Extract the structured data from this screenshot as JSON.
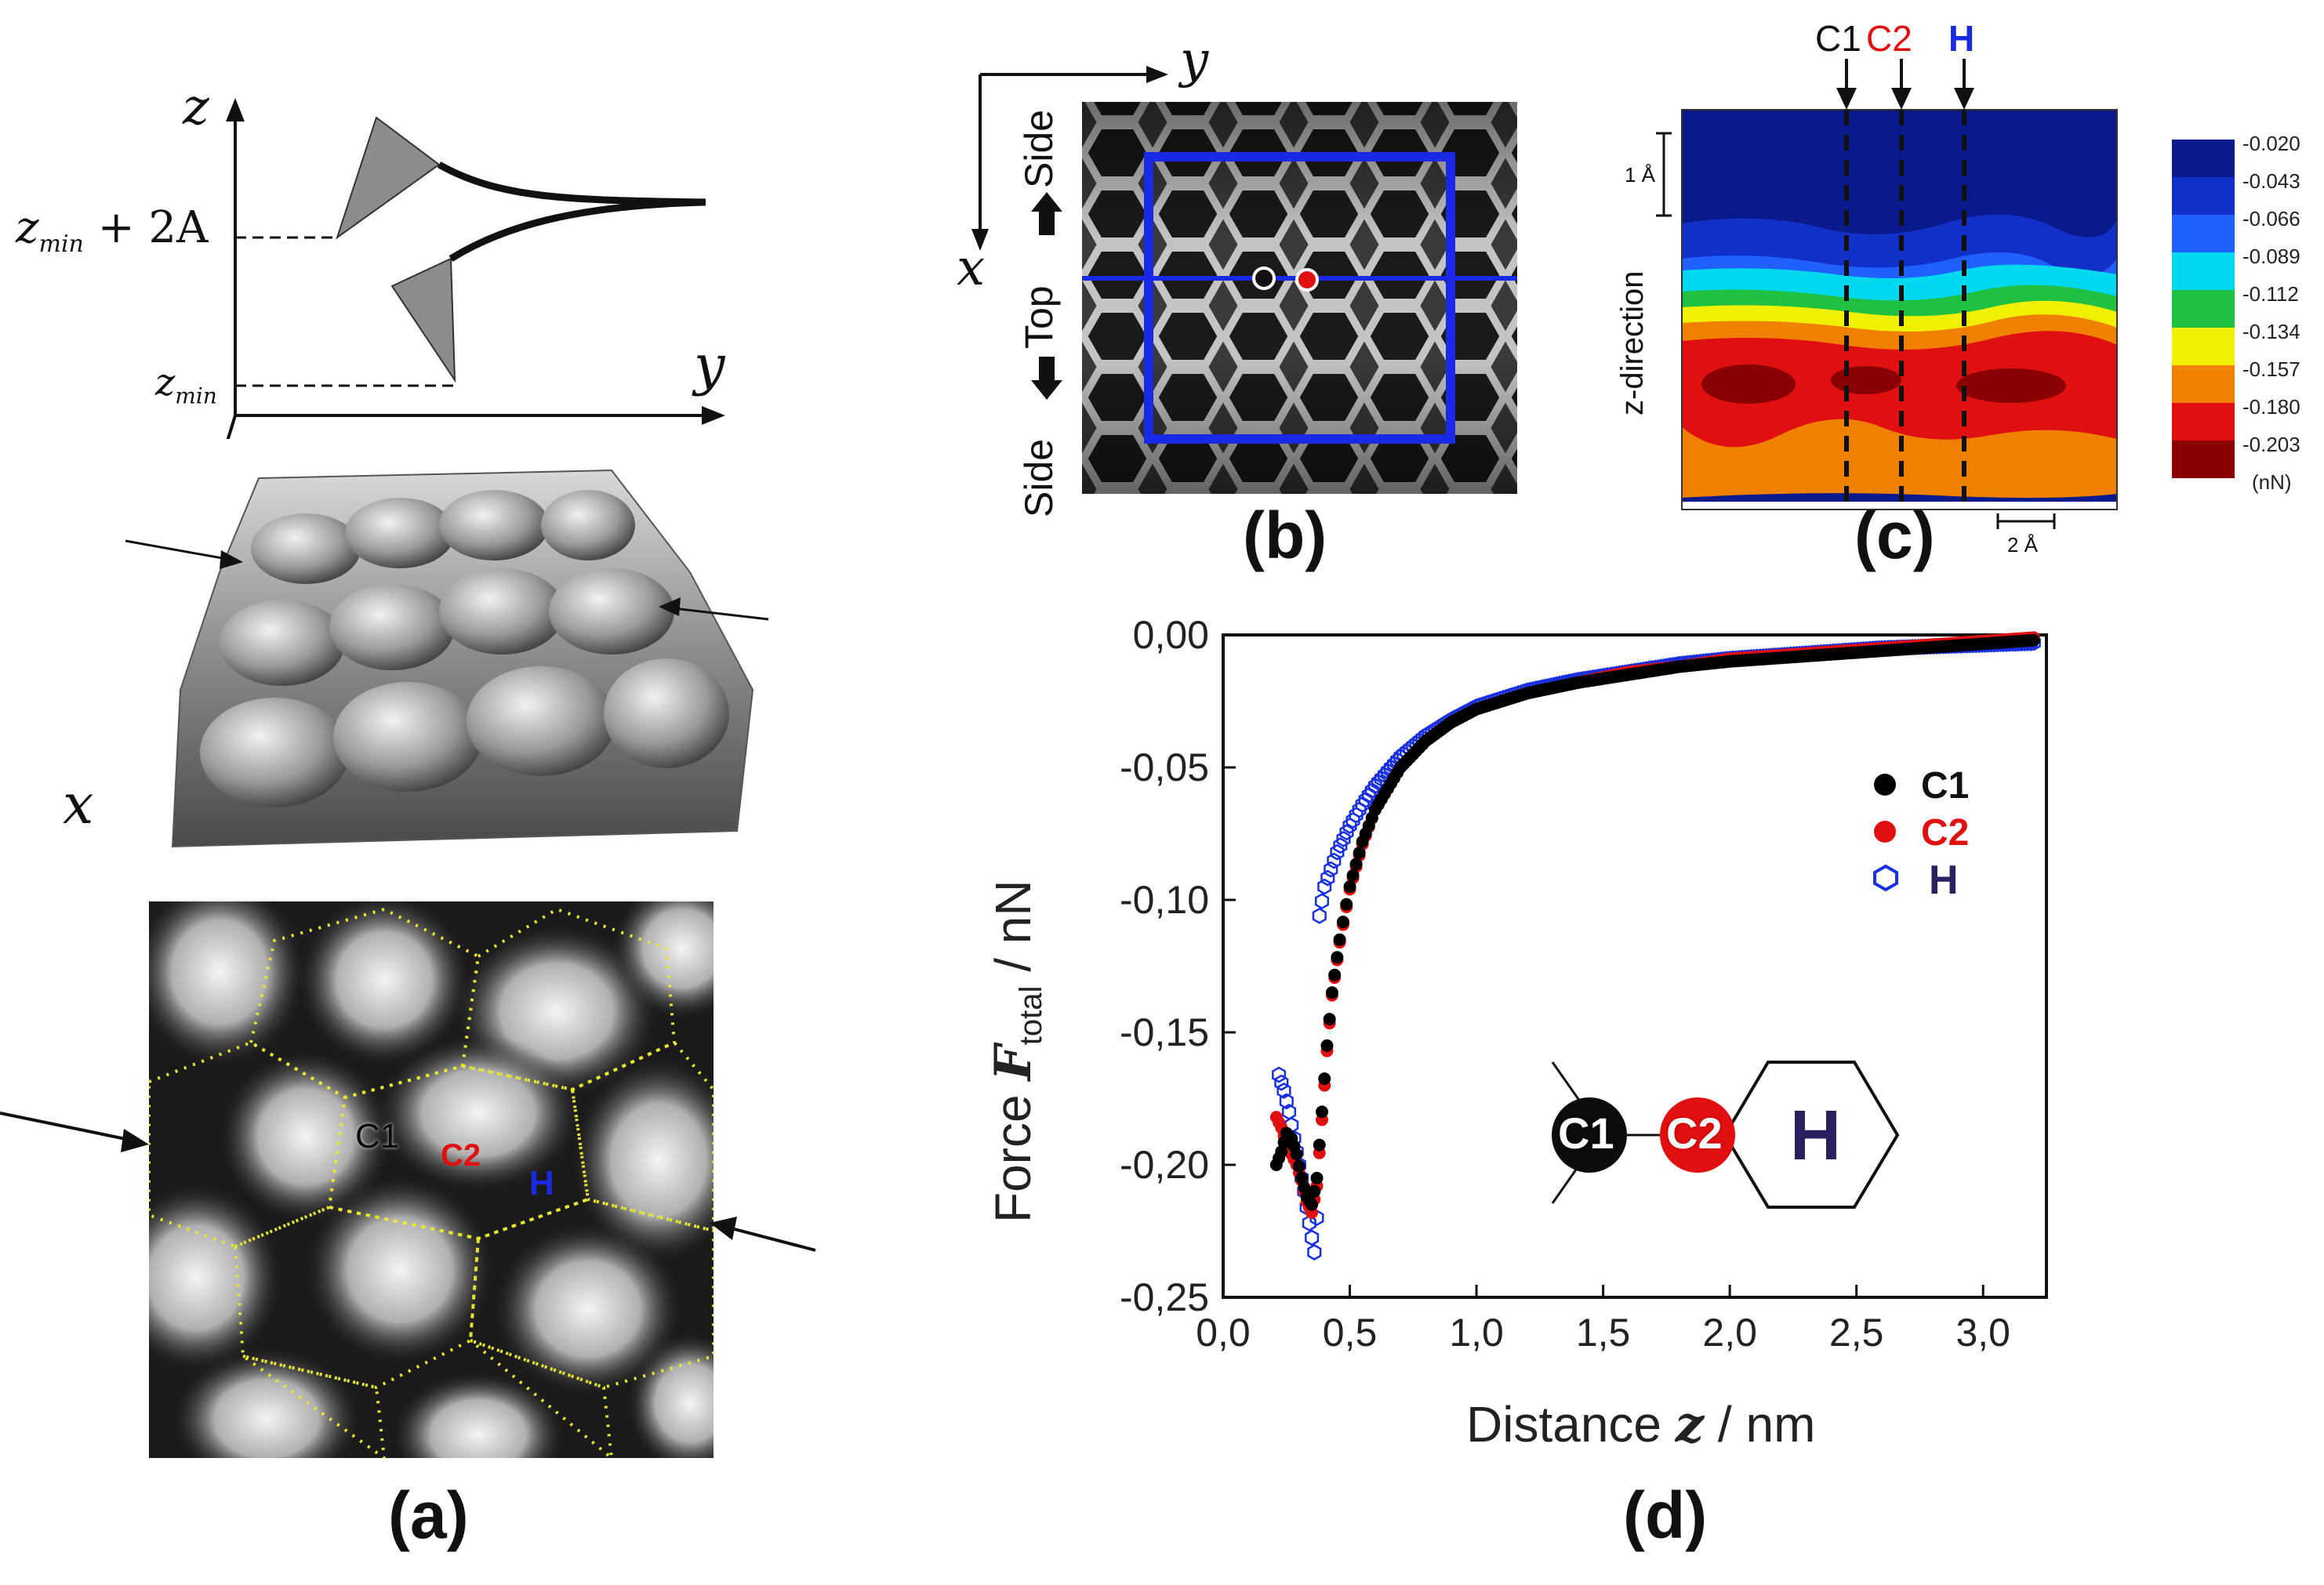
{
  "panels": {
    "a": {
      "label": "(a)",
      "axes": {
        "z": "z",
        "y": "y",
        "x": "x"
      },
      "annotations": {
        "zmin_plus": "z",
        "zmin_plus_sub": "min",
        "zmin_plus_rest": " + 2A",
        "zmin": "z",
        "zmin_sub": "min"
      },
      "atom_labels": {
        "c1": "C1",
        "c2": "C2",
        "h": "H"
      }
    },
    "b": {
      "label": "(b)",
      "axes": {
        "y": "y",
        "x": "x"
      },
      "side_labels": {
        "side_top": "Side",
        "top": "Top",
        "side_bottom": "Side"
      }
    },
    "c": {
      "label": "(c)",
      "column_labels": {
        "c1": "C1",
        "c2": "C2",
        "h": "H"
      },
      "y_label": "z-direction",
      "scale_v": "1 Å",
      "scale_h": "2 Å",
      "colorbar": {
        "unit": "(nN)",
        "levels": [
          "-0.020",
          "-0.043",
          "-0.066",
          "-0.089",
          "-0.112",
          "-0.134",
          "-0.157",
          "-0.180",
          "-0.203"
        ],
        "colors": [
          "#0a1a8c",
          "#1030c8",
          "#2060ff",
          "#00d8f0",
          "#20c040",
          "#f0f000",
          "#f08000",
          "#e01010",
          "#8a0000"
        ]
      }
    },
    "d": {
      "label": "(d)",
      "molecule": {
        "c1": "C1",
        "c2": "C2",
        "h": "H"
      }
    }
  },
  "chart_data": {
    "type": "scatter",
    "title": "",
    "xlabel_text": "Distance ",
    "xlabel_var": "z",
    "xlabel_unit": " / nm",
    "ylabel_text": "Force ",
    "ylabel_var": "F",
    "ylabel_sub": "total",
    "ylabel_unit": " / nN",
    "xlim": [
      0.0,
      3.25
    ],
    "ylim": [
      -0.25,
      0.0
    ],
    "x_ticks": [
      "0,0",
      "0,5",
      "1,0",
      "1,5",
      "2,0",
      "2,5",
      "3,0"
    ],
    "y_ticks": [
      "0,00",
      "-0,05",
      "-0,10",
      "-0,15",
      "-0,20",
      "-0,25"
    ],
    "legend_position": "right",
    "series": [
      {
        "name": "C1",
        "color": "#000000",
        "marker": "filled-circle",
        "points": [
          [
            0.21,
            -0.2
          ],
          [
            0.23,
            -0.195
          ],
          [
            0.25,
            -0.188
          ],
          [
            0.27,
            -0.19
          ],
          [
            0.29,
            -0.196
          ],
          [
            0.31,
            -0.205
          ],
          [
            0.33,
            -0.212
          ],
          [
            0.35,
            -0.215
          ],
          [
            0.37,
            -0.205
          ],
          [
            0.39,
            -0.18
          ],
          [
            0.41,
            -0.155
          ],
          [
            0.43,
            -0.135
          ],
          [
            0.46,
            -0.115
          ],
          [
            0.5,
            -0.095
          ],
          [
            0.55,
            -0.078
          ],
          [
            0.6,
            -0.066
          ],
          [
            0.7,
            -0.05
          ],
          [
            0.8,
            -0.04
          ],
          [
            0.9,
            -0.033
          ],
          [
            1.0,
            -0.028
          ],
          [
            1.2,
            -0.022
          ],
          [
            1.4,
            -0.018
          ],
          [
            1.6,
            -0.015
          ],
          [
            1.8,
            -0.012
          ],
          [
            2.0,
            -0.01
          ],
          [
            2.3,
            -0.008
          ],
          [
            2.6,
            -0.006
          ],
          [
            2.9,
            -0.004
          ],
          [
            3.2,
            -0.002
          ]
        ]
      },
      {
        "name": "C2",
        "color": "#e01010",
        "marker": "filled-circle",
        "points": [
          [
            0.21,
            -0.182
          ],
          [
            0.23,
            -0.186
          ],
          [
            0.25,
            -0.192
          ],
          [
            0.27,
            -0.196
          ],
          [
            0.29,
            -0.2
          ],
          [
            0.31,
            -0.206
          ],
          [
            0.33,
            -0.214
          ],
          [
            0.35,
            -0.218
          ],
          [
            0.37,
            -0.208
          ],
          [
            0.39,
            -0.183
          ],
          [
            0.41,
            -0.157
          ],
          [
            0.43,
            -0.136
          ],
          [
            0.46,
            -0.116
          ],
          [
            0.5,
            -0.096
          ],
          [
            0.55,
            -0.079
          ],
          [
            0.6,
            -0.066
          ],
          [
            0.7,
            -0.05
          ],
          [
            0.8,
            -0.04
          ],
          [
            0.9,
            -0.033
          ],
          [
            1.0,
            -0.028
          ],
          [
            1.2,
            -0.022
          ],
          [
            1.4,
            -0.018
          ],
          [
            1.6,
            -0.014
          ],
          [
            1.8,
            -0.012
          ],
          [
            2.0,
            -0.009
          ],
          [
            2.3,
            -0.007
          ],
          [
            2.6,
            -0.005
          ],
          [
            2.9,
            -0.003
          ],
          [
            3.2,
            -0.001
          ]
        ]
      },
      {
        "name": "H",
        "color": "#1830e0",
        "marker": "open-hexagon",
        "points": [
          [
            0.22,
            -0.166
          ],
          [
            0.24,
            -0.172
          ],
          [
            0.26,
            -0.18
          ],
          [
            0.28,
            -0.19
          ],
          [
            0.3,
            -0.2
          ],
          [
            0.32,
            -0.21
          ],
          [
            0.34,
            -0.222
          ],
          [
            0.36,
            -0.233
          ],
          [
            0.37,
            -0.22
          ],
          [
            0.38,
            -0.106
          ],
          [
            0.4,
            -0.095
          ],
          [
            0.45,
            -0.082
          ],
          [
            0.5,
            -0.072
          ],
          [
            0.55,
            -0.064
          ],
          [
            0.6,
            -0.057
          ],
          [
            0.7,
            -0.046
          ],
          [
            0.8,
            -0.038
          ],
          [
            0.9,
            -0.032
          ],
          [
            1.0,
            -0.027
          ],
          [
            1.2,
            -0.021
          ],
          [
            1.4,
            -0.017
          ],
          [
            1.6,
            -0.014
          ],
          [
            1.8,
            -0.011
          ],
          [
            2.0,
            -0.009
          ],
          [
            2.3,
            -0.007
          ],
          [
            2.6,
            -0.005
          ],
          [
            2.9,
            -0.004
          ],
          [
            3.2,
            -0.003
          ]
        ]
      }
    ]
  }
}
